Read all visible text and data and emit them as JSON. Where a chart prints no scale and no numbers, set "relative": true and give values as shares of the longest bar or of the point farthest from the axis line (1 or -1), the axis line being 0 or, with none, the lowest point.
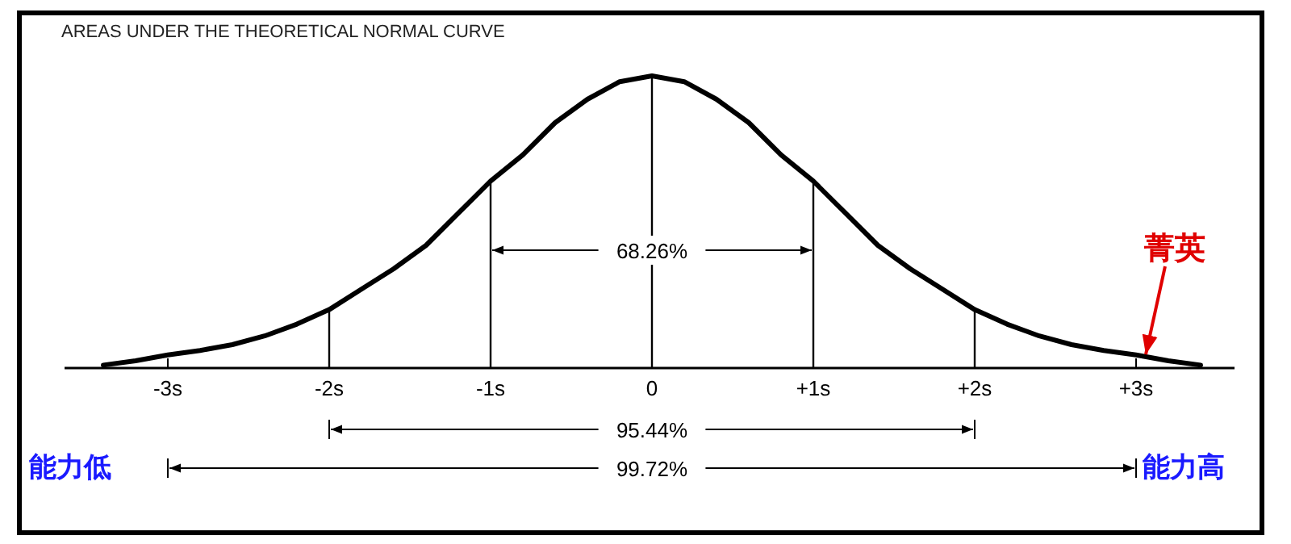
{
  "chart_data": {
    "type": "line",
    "title": "AREAS UNDER THE THEORETICAL NORMAL CURVE",
    "relative": true,
    "color": "#000000",
    "x": [
      -3.4,
      -3.2,
      -3.0,
      -2.8,
      -2.6,
      -2.4,
      -2.2,
      -2.0,
      -1.8,
      -1.6,
      -1.4,
      -1.2,
      -1.0,
      -0.8,
      -0.6,
      -0.4,
      -0.2,
      0,
      0.2,
      0.4,
      0.6,
      0.8,
      1.0,
      1.2,
      1.4,
      1.6,
      1.8,
      2.0,
      2.2,
      2.4,
      2.6,
      2.8,
      3.0,
      3.2,
      3.4
    ],
    "values": [
      0.01,
      0.025,
      0.045,
      0.06,
      0.08,
      0.11,
      0.15,
      0.2,
      0.27,
      0.34,
      0.42,
      0.53,
      0.64,
      0.73,
      0.84,
      0.92,
      0.98,
      1,
      0.98,
      0.92,
      0.84,
      0.73,
      0.64,
      0.53,
      0.42,
      0.34,
      0.27,
      0.2,
      0.15,
      0.11,
      0.08,
      0.06,
      0.045,
      0.025,
      0.01
    ],
    "xlim": [
      -3.64,
      3.61
    ],
    "xticks": [
      {
        "value": -3,
        "label": "-3s"
      },
      {
        "value": -2,
        "label": "-2s"
      },
      {
        "value": -1,
        "label": "-1s"
      },
      0,
      {
        "value": 1,
        "label": "+1s"
      },
      {
        "value": 2,
        "label": "+2s"
      },
      {
        "value": 3,
        "label": "+3s"
      }
    ],
    "ref_lines": [
      {
        "axis": "x",
        "value": -2,
        "label": null
      },
      {
        "axis": "x",
        "value": -1,
        "label": null
      },
      {
        "axis": "x",
        "value": 0,
        "label": null
      },
      {
        "axis": "x",
        "value": 1,
        "label": null
      },
      {
        "axis": "x",
        "value": 2,
        "label": null
      }
    ],
    "annotations": [
      "68.26%",
      "95.44%",
      "99.72%",
      {
        "text": "菁英",
        "x": 3.04,
        "y": 0.03
      },
      "能力低",
      "能力高"
    ]
  }
}
